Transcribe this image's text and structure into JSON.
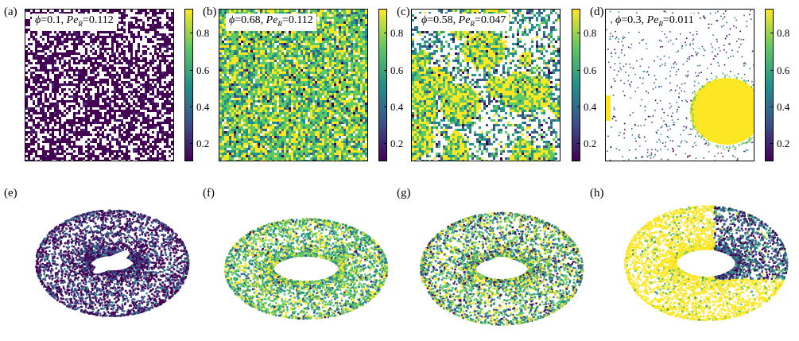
{
  "panels_top": [
    {
      "label": "(a)",
      "phi": "0.1",
      "per": "0.112",
      "scheme": "dark"
    },
    {
      "label": "(b)",
      "phi": "0.68",
      "per": "0.112",
      "scheme": "dense"
    },
    {
      "label": "(c)",
      "phi": "0.58",
      "per": "0.047",
      "scheme": "mixed"
    },
    {
      "label": "(d)",
      "phi": "0.3",
      "per": "0.011",
      "scheme": "sparse"
    }
  ],
  "panels_bottom": [
    {
      "label": "(e)",
      "scheme": "dark"
    },
    {
      "label": "(f)",
      "scheme": "dense"
    },
    {
      "label": "(g)",
      "scheme": "mixed"
    },
    {
      "label": "(h)",
      "scheme": "cluster"
    }
  ],
  "colorbar": {
    "ticks": [
      "0.8",
      "0.6",
      "0.4",
      "0.2"
    ],
    "colormap": [
      "#440154",
      "#3b528b",
      "#21918c",
      "#5ec962",
      "#fde725"
    ]
  },
  "symbols": {
    "phi": "ϕ",
    "pe": "Pe",
    "sub": "R"
  }
}
